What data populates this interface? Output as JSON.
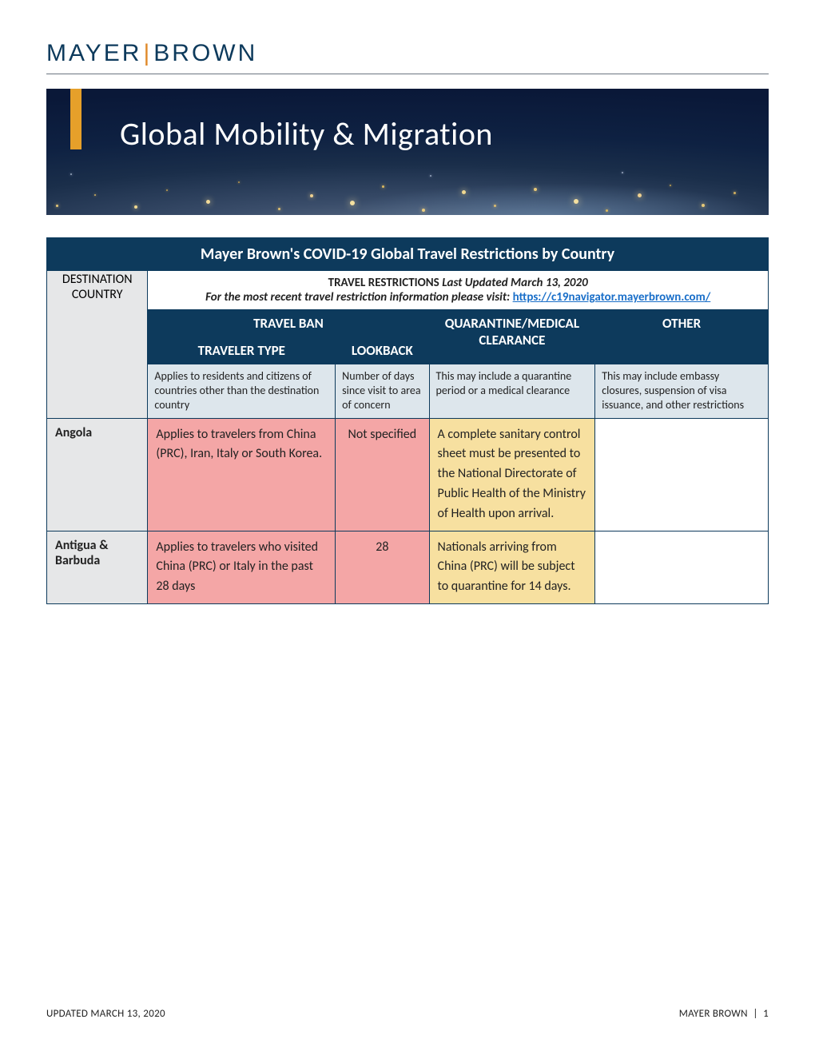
{
  "brand": {
    "first": "MAYER",
    "sep": "|",
    "second": "BROWN"
  },
  "banner": {
    "title": "Global Mobility & Migration",
    "accent_color": "#e6a02a"
  },
  "colors": {
    "header_bg": "#0d3a5c",
    "gray_bg": "#e6e7e8",
    "desc_bg": "#dde6ec",
    "red_bg": "#f4a6a6",
    "yellow_bg": "#f7e0a0",
    "link": "#1a6fc9"
  },
  "table": {
    "title": "Mayer Brown's COVID-19 Global Travel Restrictions by Country",
    "update_label": "TRAVEL RESTRICTIONS",
    "update_text": "Last Updated March 13, 2020",
    "visit_text": "For the most recent travel restriction information please visit:",
    "visit_url": "https://c19navigator.mayerbrown.com/",
    "col_widths": {
      "country": 14,
      "traveler": 26,
      "lookback": 13,
      "quarantine": 23,
      "other": 24
    },
    "headers": {
      "destination": "DESTINATION COUNTRY",
      "travel_ban": "TRAVEL BAN",
      "traveler_type": "TRAVELER TYPE",
      "lookback": "LOOKBACK",
      "quarantine": "QUARANTINE/MEDICAL CLEARANCE",
      "other": "OTHER"
    },
    "descriptions": {
      "traveler_type": "Applies to residents and citizens of countries other than the destination country",
      "lookback": "Number of days since visit to area of concern",
      "quarantine": "This may include a quarantine period or a medical clearance",
      "other": "This may include embassy closures, suspension of visa issuance, and other restrictions"
    },
    "rows": [
      {
        "country": "Angola",
        "traveler_type": "Applies to travelers from China (PRC), Iran, Italy or South Korea.",
        "lookback": "Not specified",
        "quarantine": "A complete sanitary control sheet must be presented to the National Directorate of Public Health of the Ministry of Health upon arrival.",
        "other": ""
      },
      {
        "country": "Antigua & Barbuda",
        "traveler_type": "Applies to travelers who visited China (PRC) or Italy in the past 28 days",
        "lookback": "28",
        "quarantine": "Nationals arriving from China (PRC) will be subject to quarantine for 14 days.",
        "other": ""
      }
    ]
  },
  "footer": {
    "left": "UPDATED MARCH 13, 2020",
    "right_brand": "MAYER BROWN",
    "right_sep": "|",
    "page": "1"
  },
  "banner_dots": [
    {
      "l": 12,
      "b": 10,
      "s": 3,
      "c": "#e6c878"
    },
    {
      "l": 60,
      "b": 24,
      "s": 2,
      "c": "#d0b060"
    },
    {
      "l": 110,
      "b": 8,
      "s": 4,
      "c": "#f0d890"
    },
    {
      "l": 150,
      "b": 30,
      "s": 2,
      "c": "#c0a050"
    },
    {
      "l": 200,
      "b": 14,
      "s": 5,
      "c": "#f2da98"
    },
    {
      "l": 240,
      "b": 40,
      "s": 2,
      "c": "#b89850"
    },
    {
      "l": 290,
      "b": 6,
      "s": 3,
      "c": "#e0c070"
    },
    {
      "l": 330,
      "b": 22,
      "s": 4,
      "c": "#eed090"
    },
    {
      "l": 380,
      "b": 12,
      "s": 6,
      "c": "#f4e0a0"
    },
    {
      "l": 420,
      "b": 34,
      "s": 3,
      "c": "#d8b860"
    },
    {
      "l": 470,
      "b": 4,
      "s": 4,
      "c": "#eacc80"
    },
    {
      "l": 520,
      "b": 26,
      "s": 5,
      "c": "#f0d890"
    },
    {
      "l": 560,
      "b": 10,
      "s": 3,
      "c": "#dcbc70"
    },
    {
      "l": 610,
      "b": 30,
      "s": 4,
      "c": "#e8c878"
    },
    {
      "l": 660,
      "b": 14,
      "s": 6,
      "c": "#f4e0a0"
    },
    {
      "l": 700,
      "b": 4,
      "s": 3,
      "c": "#d8b860"
    },
    {
      "l": 740,
      "b": 22,
      "s": 5,
      "c": "#eed090"
    },
    {
      "l": 780,
      "b": 36,
      "s": 2,
      "c": "#c0a050"
    },
    {
      "l": 820,
      "b": 10,
      "s": 4,
      "c": "#e6c878"
    },
    {
      "l": 860,
      "b": 26,
      "s": 3,
      "c": "#d0b060"
    },
    {
      "l": 30,
      "b": 50,
      "s": 2,
      "c": "#9aa8c0"
    },
    {
      "l": 480,
      "b": 48,
      "s": 2,
      "c": "#9aa8c0"
    },
    {
      "l": 720,
      "b": 52,
      "s": 2,
      "c": "#9aa8c0"
    }
  ]
}
